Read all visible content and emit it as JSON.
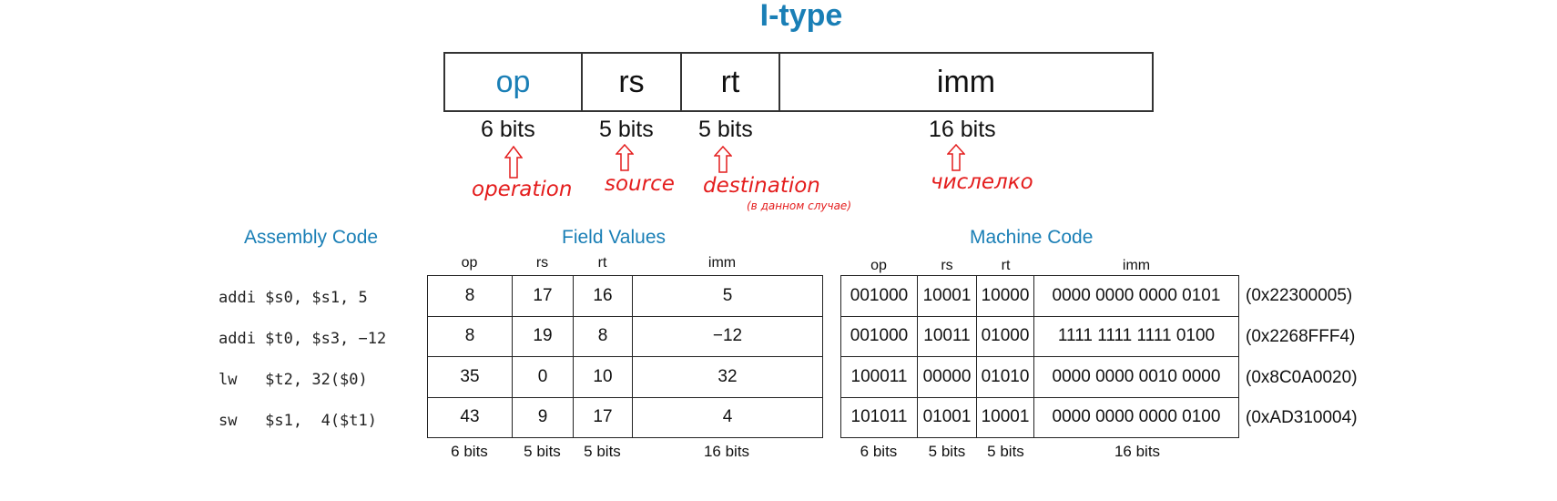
{
  "title": "I-type",
  "format": {
    "fields": [
      "op",
      "rs",
      "rt",
      "imm"
    ],
    "bits": [
      "6 bits",
      "5 bits",
      "5 bits",
      "16 bits"
    ],
    "annotations": [
      "operation",
      "source",
      "destination",
      "числелко"
    ],
    "annotation_note": "(в данном случае)",
    "colors": {
      "op_text": "#1a7fb6",
      "annotation": "#e41d1d",
      "heading": "#1a7fb6"
    }
  },
  "headings": {
    "assembly": "Assembly Code",
    "field_values": "Field Values",
    "machine_code": "Machine Code"
  },
  "columns": [
    "op",
    "rs",
    "rt",
    "imm"
  ],
  "bit_widths": [
    "6 bits",
    "5 bits",
    "5 bits",
    "16 bits"
  ],
  "rows": [
    {
      "asm": "addi $s0, $s1, 5",
      "fields": [
        "8",
        "17",
        "16",
        "5"
      ],
      "machine": [
        "001000",
        "10001",
        "10000",
        "0000 0000 0000 0101"
      ],
      "hex": "(0x22300005)"
    },
    {
      "asm": "addi $t0, $s3, −12",
      "fields": [
        "8",
        "19",
        "8",
        "−12"
      ],
      "machine": [
        "001000",
        "10011",
        "01000",
        "1111 1111 1111 0100"
      ],
      "hex": "(0x2268FFF4)"
    },
    {
      "asm": "lw   $t2, 32($0)",
      "fields": [
        "35",
        "0",
        "10",
        "32"
      ],
      "machine": [
        "100011",
        "00000",
        "01010",
        "0000 0000 0010 0000"
      ],
      "hex": "(0x8C0A0020)"
    },
    {
      "asm": "sw   $s1,  4($t1)",
      "fields": [
        "43",
        "9",
        "17",
        "4"
      ],
      "machine": [
        "101011",
        "01001",
        "10001",
        "0000 0000 0000 0100"
      ],
      "hex": "(0xAD310004)"
    }
  ]
}
